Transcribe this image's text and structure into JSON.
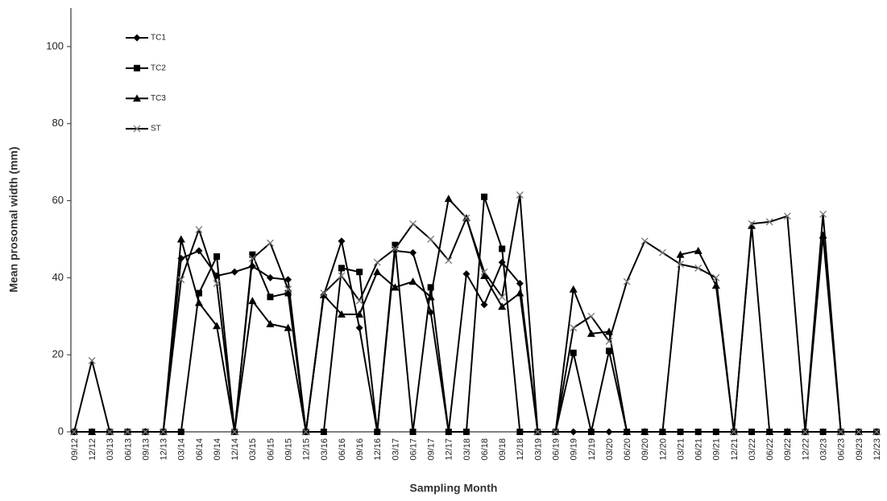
{
  "chart_data": {
    "type": "line",
    "x_label": "Sampling Month",
    "y_label": "Mean prosomal width (mm)",
    "categories": [
      "09/12",
      "12/12",
      "03/13",
      "06/13",
      "09/13",
      "12/13",
      "03/14",
      "06/14",
      "09/14",
      "12/14",
      "03/15",
      "06/15",
      "09/15",
      "12/15",
      "03/16",
      "06/16",
      "09/16",
      "12/16",
      "03/17",
      "06/17",
      "09/17",
      "12/17",
      "03/18",
      "06/18",
      "09/18",
      "12/18",
      "03/19",
      "06/19",
      "09/19",
      "12/19",
      "03/20",
      "06/20",
      "09/20",
      "12/20",
      "03/21",
      "06/21",
      "09/21",
      "12/21",
      "03/22",
      "06/22",
      "09/22",
      "12/22",
      "03/23",
      "06/23",
      "09/23",
      "12/23"
    ],
    "ylim": [
      0,
      110
    ],
    "yticks": [
      0,
      20,
      40,
      60,
      80,
      100
    ],
    "grid": false,
    "legend": "upper left",
    "series": [
      {
        "name": "TC1",
        "color": "#000000",
        "marker": "diamond",
        "values": [
          0,
          0,
          0,
          0,
          0,
          0,
          45,
          47,
          40.5,
          41.5,
          43,
          40,
          39.5,
          0,
          35.5,
          49.5,
          27,
          0,
          47,
          46.5,
          31,
          0,
          41,
          33,
          44,
          38.5,
          0,
          0,
          0,
          0,
          0,
          0,
          0,
          0,
          0,
          0,
          0,
          0,
          0,
          0,
          0,
          0,
          0,
          0,
          0,
          0
        ]
      },
      {
        "name": "TC2",
        "color": "#000000",
        "marker": "square",
        "values": [
          0,
          0,
          0,
          0,
          0,
          0,
          0,
          36,
          45.5,
          0,
          46,
          35,
          36,
          0,
          0,
          42.5,
          41.5,
          0,
          48.5,
          0,
          37.5,
          0,
          0,
          61,
          47.5,
          0,
          0,
          0,
          20.5,
          0,
          21,
          0,
          0,
          0,
          0,
          0,
          0,
          0,
          0,
          0,
          0,
          0,
          0,
          0,
          0,
          0
        ]
      },
      {
        "name": "TC3",
        "color": "#000000",
        "marker": "triangle",
        "values": [
          0,
          0,
          0,
          0,
          0,
          0,
          50,
          33.5,
          27.5,
          0,
          34,
          28,
          27,
          0,
          35.5,
          30.5,
          30.5,
          41.5,
          37.5,
          39,
          35,
          60.5,
          55.5,
          40.5,
          32.5,
          36,
          0,
          0,
          37,
          25.5,
          26,
          0,
          0,
          0,
          46,
          47,
          38,
          0,
          53.5,
          0,
          0,
          0,
          51,
          0,
          0,
          0
        ]
      },
      {
        "name": "ST",
        "color": "#000000",
        "marker": "x",
        "values": [
          0,
          18.5,
          0,
          0,
          0,
          0,
          39.5,
          52.5,
          38.5,
          0,
          45,
          49,
          37,
          0,
          36,
          40.5,
          34,
          44,
          47.5,
          54,
          50,
          44.5,
          55.5,
          41.5,
          35,
          61.5,
          0,
          0,
          27,
          30,
          23.5,
          39,
          49.5,
          46.5,
          43.5,
          42.5,
          40,
          0,
          54,
          54.5,
          56,
          0,
          56.5,
          0,
          0,
          0
        ]
      }
    ]
  }
}
